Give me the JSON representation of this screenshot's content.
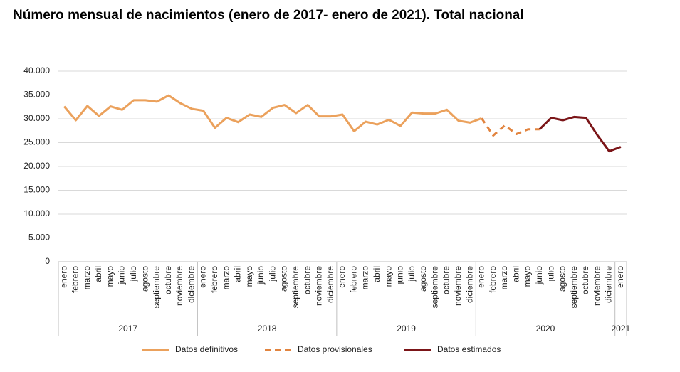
{
  "chart_data": {
    "type": "line",
    "title": "Número mensual de nacimientos (enero de 2017- enero de 2021). Total nacional",
    "category_groups": [
      {
        "name": "2017",
        "categories": [
          "enero",
          "febrero",
          "marzo",
          "abril",
          "mayo",
          "junio",
          "julio",
          "agosto",
          "septiembre",
          "octubre",
          "noviembre",
          "diciembre"
        ]
      },
      {
        "name": "2018",
        "categories": [
          "enero",
          "febrero",
          "marzo",
          "abril",
          "mayo",
          "junio",
          "julio",
          "agosto",
          "septiembre",
          "octubre",
          "noviembre",
          "diciembre"
        ]
      },
      {
        "name": "2019",
        "categories": [
          "enero",
          "febrero",
          "marzo",
          "abril",
          "mayo",
          "junio",
          "julio",
          "agosto",
          "septiembre",
          "octubre",
          "noviembre",
          "diciembre"
        ]
      },
      {
        "name": "2020",
        "categories": [
          "enero",
          "febrero",
          "marzo",
          "abril",
          "mayo",
          "junio",
          "julio",
          "agosto",
          "septiembre",
          "octubre",
          "noviembre",
          "diciembre"
        ]
      },
      {
        "name": "2021",
        "categories": [
          "enero"
        ]
      }
    ],
    "series": [
      {
        "name": "Datos definitivos",
        "color": "#eba15c",
        "dashed": false,
        "values": [
          32600,
          29700,
          32700,
          30600,
          32600,
          31900,
          33900,
          33900,
          33600,
          34900,
          33300,
          32100,
          31700,
          28100,
          30200,
          29300,
          30900,
          30400,
          32300,
          32900,
          31200,
          32900,
          30500,
          30500,
          30900,
          27400,
          29400,
          28800,
          29800,
          28500,
          31300,
          31100,
          31100,
          31900,
          29600,
          29200,
          30100,
          null,
          null,
          null,
          null,
          null,
          null,
          null,
          null,
          null,
          null,
          null,
          null
        ]
      },
      {
        "name": "Datos provisionales",
        "color": "#e2843f",
        "dashed": true,
        "values": [
          null,
          null,
          null,
          null,
          null,
          null,
          null,
          null,
          null,
          null,
          null,
          null,
          null,
          null,
          null,
          null,
          null,
          null,
          null,
          null,
          null,
          null,
          null,
          null,
          null,
          null,
          null,
          null,
          null,
          null,
          null,
          null,
          null,
          null,
          null,
          null,
          30100,
          26500,
          28600,
          26800,
          27800,
          27800,
          null,
          null,
          null,
          null,
          null,
          null,
          null
        ]
      },
      {
        "name": "Datos estimados",
        "color": "#7b1518",
        "dashed": false,
        "values": [
          null,
          null,
          null,
          null,
          null,
          null,
          null,
          null,
          null,
          null,
          null,
          null,
          null,
          null,
          null,
          null,
          null,
          null,
          null,
          null,
          null,
          null,
          null,
          null,
          null,
          null,
          null,
          null,
          null,
          null,
          null,
          null,
          null,
          null,
          null,
          null,
          null,
          null,
          null,
          null,
          null,
          27800,
          30200,
          29700,
          30400,
          30200,
          26500,
          23200,
          24100
        ]
      }
    ],
    "ylim": [
      0,
      40000
    ],
    "yticks": [
      0,
      {
        "value": 5000,
        "label": "5.000"
      },
      {
        "value": 10000,
        "label": "10.000"
      },
      {
        "value": 15000,
        "label": "15.000"
      },
      {
        "value": 20000,
        "label": "20.000"
      },
      {
        "value": 25000,
        "label": "25.000"
      },
      {
        "value": 30000,
        "label": "30.000"
      },
      {
        "value": 35000,
        "label": "35.000"
      },
      {
        "value": 40000,
        "label": "40.000"
      }
    ],
    "grid": true,
    "legend": "bottom"
  }
}
